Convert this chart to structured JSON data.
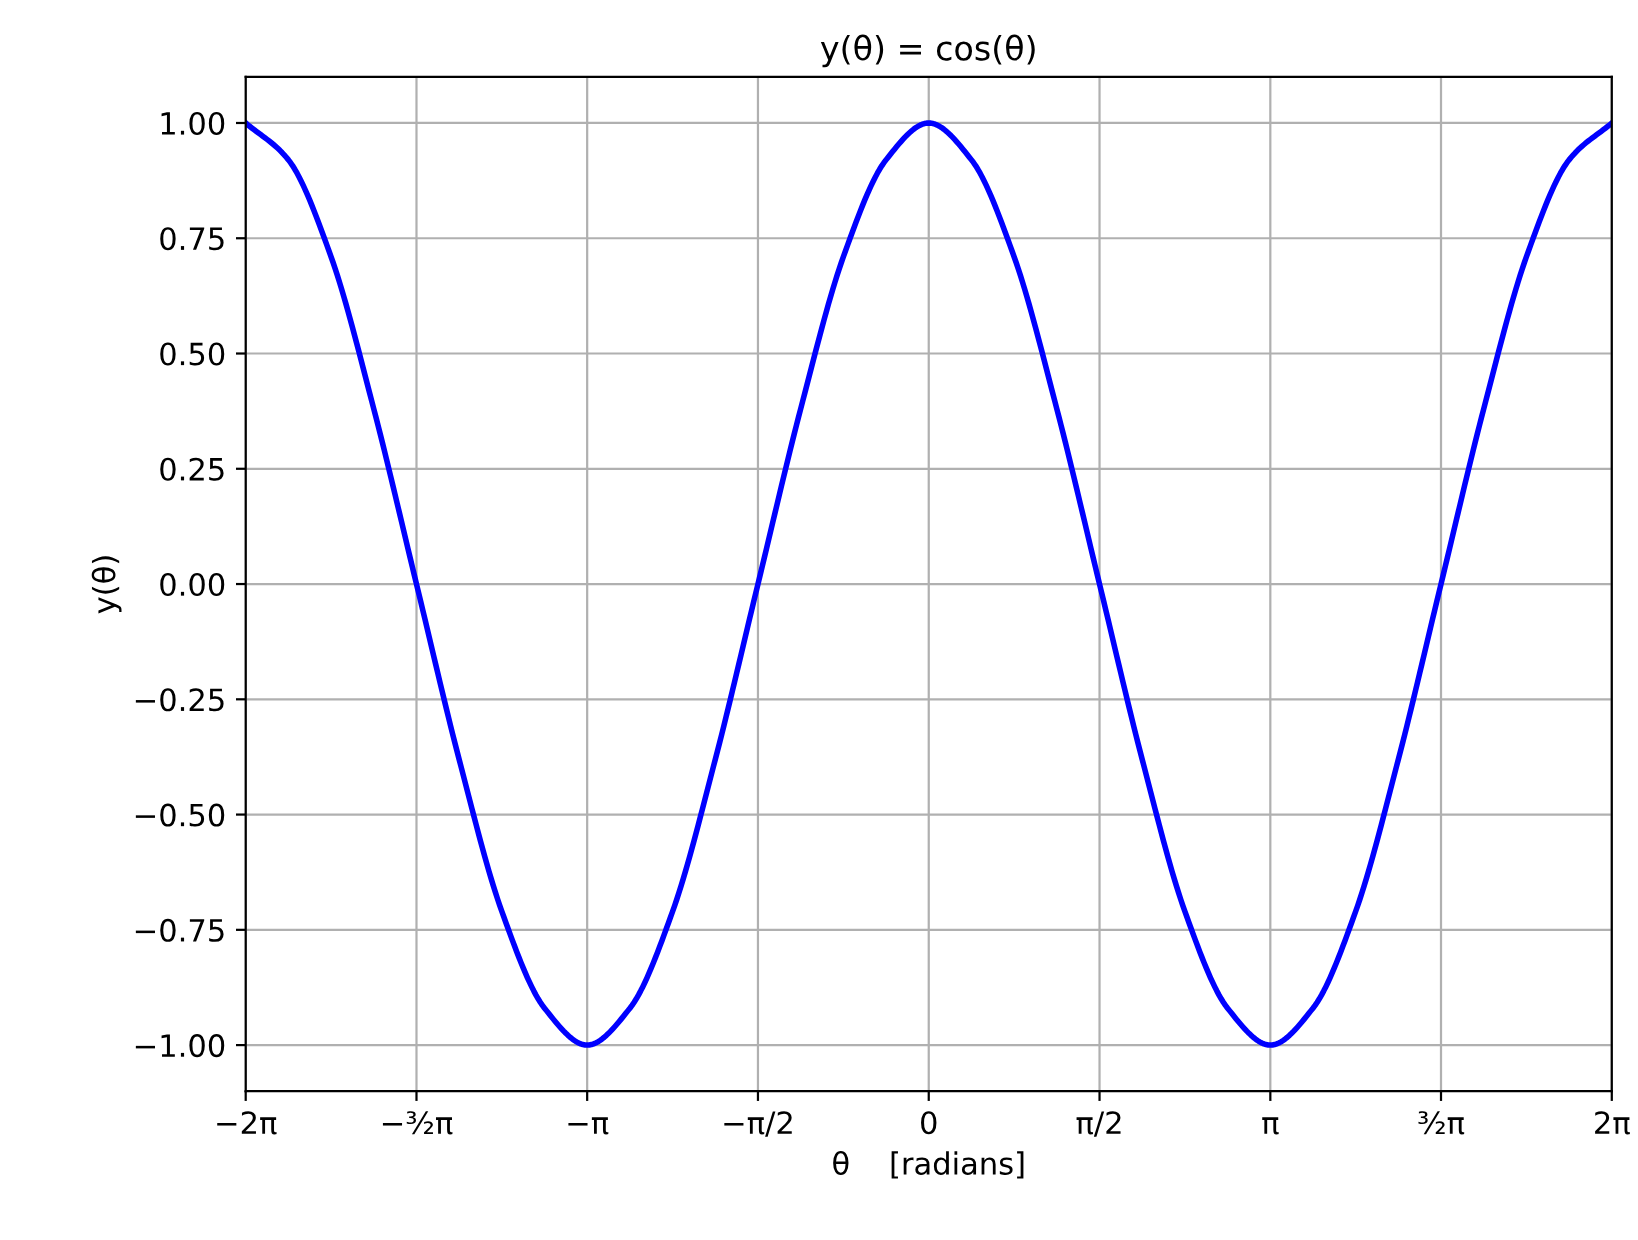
{
  "chart_data": {
    "type": "line",
    "title": "y(θ) = cos(θ)",
    "xlabel": "θ    [radians]",
    "ylabel": "y(θ)",
    "x": [
      -6.283,
      -5.89,
      -5.498,
      -5.105,
      -4.712,
      -4.32,
      -3.927,
      -3.534,
      -3.142,
      -2.749,
      -2.356,
      -1.963,
      -1.571,
      -1.178,
      -0.785,
      -0.393,
      0,
      0.393,
      0.785,
      1.178,
      1.571,
      1.963,
      2.356,
      2.749,
      3.142,
      3.534,
      3.927,
      4.32,
      4.712,
      5.105,
      5.498,
      5.89,
      6.283
    ],
    "series": [
      {
        "color": "#0000ff",
        "values": [
          1,
          0.92,
          0.71,
          0.38,
          0,
          -0.38,
          -0.71,
          -0.92,
          -1,
          -0.92,
          -0.71,
          -0.38,
          0,
          0.38,
          0.71,
          0.92,
          1,
          0.92,
          0.71,
          0.38,
          0,
          -0.38,
          -0.71,
          -0.92,
          -1,
          -0.92,
          -0.71,
          -0.38,
          0,
          0.38,
          0.71,
          0.92,
          1
        ]
      }
    ],
    "xlim": [
      -6.283,
      6.283
    ],
    "xticks": [
      {
        "value": -6.283,
        "label": "−2π"
      },
      {
        "value": -4.712,
        "label": "−³⁄₂π"
      },
      {
        "value": -3.142,
        "label": "−π"
      },
      {
        "value": -1.571,
        "label": "−π/2"
      },
      0,
      {
        "value": 1.571,
        "label": "π/2"
      },
      {
        "value": 3.142,
        "label": "π"
      },
      {
        "value": 4.712,
        "label": "³⁄₂π"
      },
      {
        "value": 6.283,
        "label": "2π"
      }
    ],
    "ylim": [
      -1.1,
      1.1
    ],
    "yticks": [
      {
        "value": -1,
        "label": "−1.00"
      },
      {
        "value": -0.75,
        "label": "−0.75"
      },
      {
        "value": -0.5,
        "label": "−0.50"
      },
      {
        "value": -0.25,
        "label": "−0.25"
      },
      {
        "value": 0,
        "label": "0.00"
      },
      {
        "value": 0.25,
        "label": "0.25"
      },
      {
        "value": 0.5,
        "label": "0.50"
      },
      {
        "value": 0.75,
        "label": "0.75"
      },
      {
        "value": 1,
        "label": "1.00"
      }
    ],
    "grid": true,
    "marker": "none",
    "line_style": "solid"
  }
}
